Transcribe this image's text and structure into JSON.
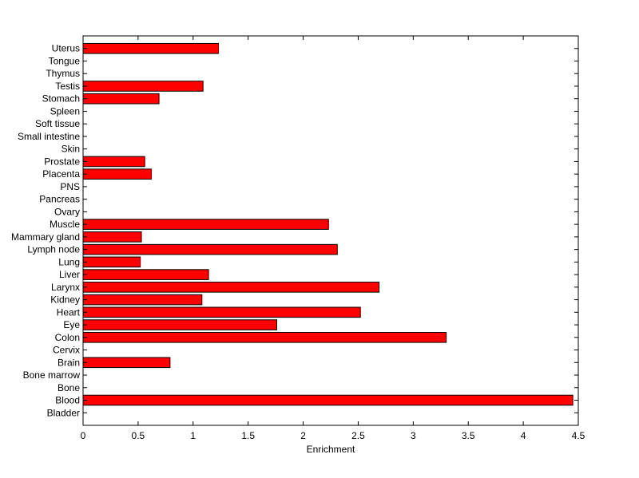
{
  "chart_data": {
    "type": "bar",
    "orientation": "horizontal",
    "title": "",
    "xlabel": "Enrichment",
    "ylabel": "",
    "xlim": [
      0,
      4.5
    ],
    "xticks": [
      "0",
      "0.5",
      "1",
      "1.5",
      "2",
      "2.5",
      "3",
      "3.5",
      "4",
      "4.5"
    ],
    "grid": false,
    "bar_color": "#ff0000",
    "categories": [
      "Bladder",
      "Blood",
      "Bone",
      "Bone marrow",
      "Brain",
      "Cervix",
      "Colon",
      "Eye",
      "Heart",
      "Kidney",
      "Larynx",
      "Liver",
      "Lung",
      "Lymph node",
      "Mammary gland",
      "Muscle",
      "Ovary",
      "Pancreas",
      "PNS",
      "Placenta",
      "Prostate",
      "Skin",
      "Small intestine",
      "Soft tissue",
      "Spleen",
      "Stomach",
      "Testis",
      "Thymus",
      "Tongue",
      "Uterus"
    ],
    "values": [
      0,
      4.45,
      0,
      0,
      0.79,
      0,
      3.3,
      1.76,
      2.52,
      1.08,
      2.69,
      1.14,
      0.52,
      2.31,
      0.53,
      2.23,
      0,
      0,
      0,
      0.62,
      0.56,
      0,
      0,
      0,
      0,
      0.69,
      1.09,
      0,
      0,
      1.23
    ]
  }
}
